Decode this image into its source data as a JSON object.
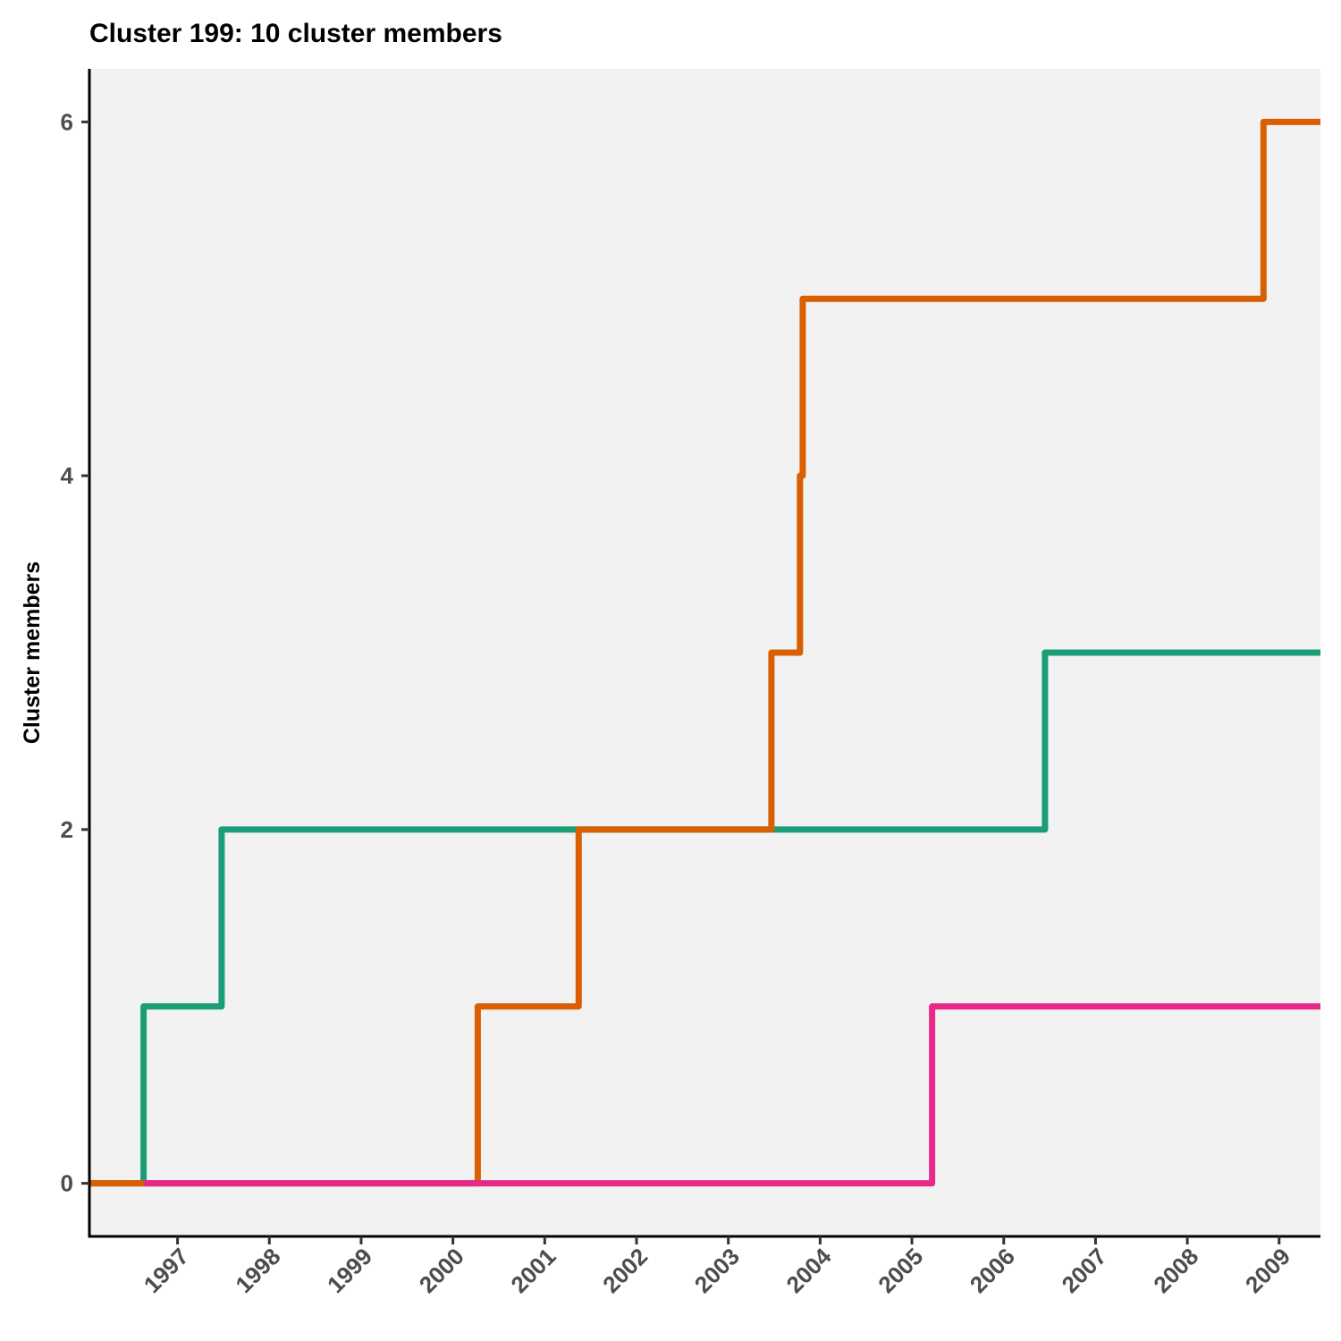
{
  "chart_data": {
    "type": "line",
    "step": true,
    "title": "Cluster 199: 10 cluster members",
    "xlabel": "",
    "ylabel": "Cluster members",
    "x_ticks": [
      "1997",
      "1998",
      "1999",
      "2000",
      "2001",
      "2002",
      "2003",
      "2004",
      "2005",
      "2006",
      "2007",
      "2008",
      "2009"
    ],
    "y_ticks": [
      "0",
      "2",
      "4",
      "6"
    ],
    "xlim": [
      1996.04,
      2009.45
    ],
    "ylim": [
      -0.3,
      6.3
    ],
    "grid": false,
    "legend": "none",
    "background_color": "#f2f2f2",
    "series": [
      {
        "color": "#1b9e77",
        "x": [
          1996.04,
          1996.63,
          1997.48,
          2006.45,
          2009.45
        ],
        "values": [
          0,
          1,
          2,
          3,
          3
        ]
      },
      {
        "color": "#d95f02",
        "x": [
          1996.04,
          2000.27,
          2001.37,
          2003.47,
          2003.78,
          2003.81,
          2008.83,
          2009.45
        ],
        "values": [
          0,
          1,
          2,
          3,
          4,
          5,
          6,
          6
        ]
      },
      {
        "color": "#e7298a",
        "x": [
          1996.63,
          2005.22,
          2009.45
        ],
        "values": [
          0,
          1,
          1
        ]
      }
    ]
  }
}
